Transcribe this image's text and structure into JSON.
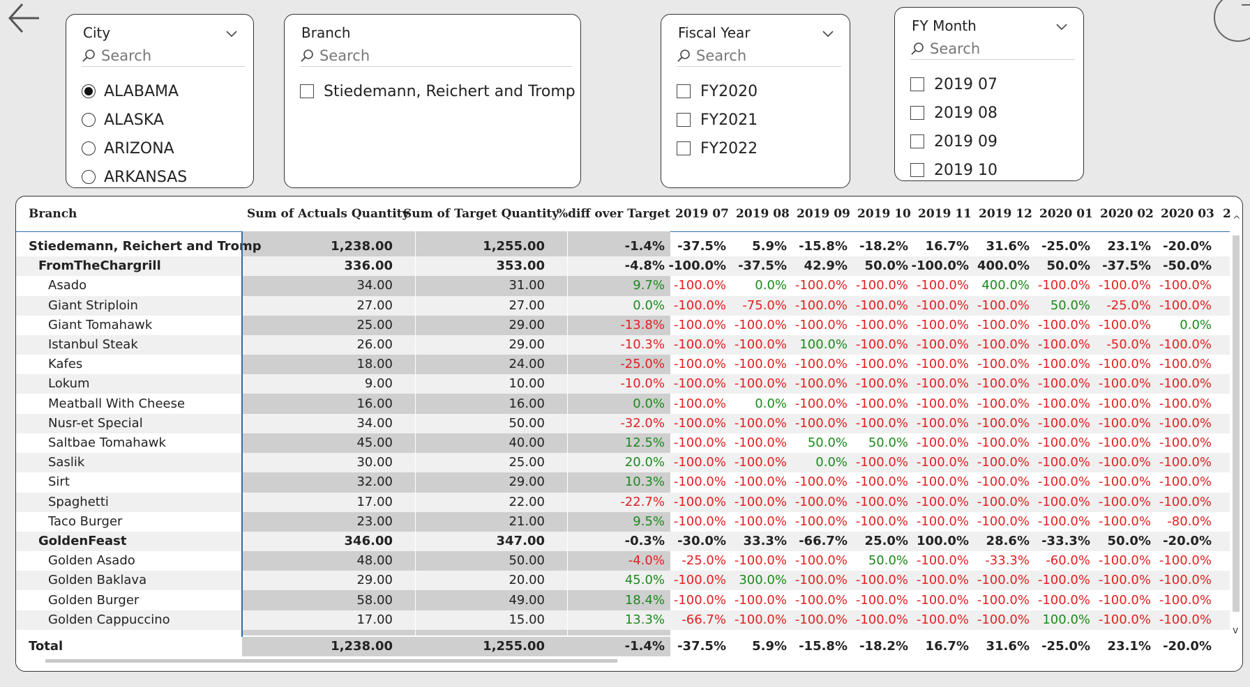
{
  "slicers": {
    "city": {
      "title": "City",
      "search": "Search",
      "items": [
        {
          "label": "ALABAMA",
          "selected": true
        },
        {
          "label": "ALASKA",
          "selected": false
        },
        {
          "label": "ARIZONA",
          "selected": false
        },
        {
          "label": "ARKANSAS",
          "selected": false
        }
      ]
    },
    "branch": {
      "title": "Branch",
      "search": "Search",
      "items": [
        {
          "label": "Stiedemann, Reichert and Tromp"
        }
      ]
    },
    "fiscal_year": {
      "title": "Fiscal Year",
      "search": "Search",
      "items": [
        {
          "label": "FY2020"
        },
        {
          "label": "FY2021"
        },
        {
          "label": "FY2022"
        }
      ]
    },
    "fy_month": {
      "title": "FY Month",
      "search": "Search",
      "items": [
        {
          "label": "2019 07"
        },
        {
          "label": "2019 08"
        },
        {
          "label": "2019 09"
        },
        {
          "label": "2019 10"
        }
      ]
    }
  },
  "matrix": {
    "headers": [
      "Branch",
      "Sum of Actuals Quantity",
      "Sum of Target Quantity",
      "%diff over Target",
      "2019 07",
      "2019 08",
      "2019 09",
      "2019 10",
      "2019 11",
      "2019 12",
      "2020 01",
      "2020 02",
      "2020 03",
      "2"
    ],
    "rows": [
      {
        "level": 0,
        "name": "Stiedemann, Reichert and Tromp",
        "actual": "1,238.00",
        "target": "1,255.00",
        "diff": "-1.4%",
        "months": [
          "-37.5%",
          "5.9%",
          "-15.8%",
          "-18.2%",
          "16.7%",
          "31.6%",
          "-25.0%",
          "23.1%",
          "-20.0%"
        ]
      },
      {
        "level": 1,
        "name": "FromTheChargrill",
        "actual": "336.00",
        "target": "353.00",
        "diff": "-4.8%",
        "months": [
          "-100.0%",
          "-37.5%",
          "42.9%",
          "50.0%",
          "-100.0%",
          "400.0%",
          "50.0%",
          "-37.5%",
          "-50.0%"
        ]
      },
      {
        "level": 2,
        "name": "Asado",
        "actual": "34.00",
        "target": "31.00",
        "diff": "9.7%",
        "months": [
          "-100.0%",
          "0.0%",
          "-100.0%",
          "-100.0%",
          "-100.0%",
          "400.0%",
          "-100.0%",
          "-100.0%",
          "-100.0%"
        ]
      },
      {
        "level": 2,
        "name": "Giant Striploin",
        "actual": "27.00",
        "target": "27.00",
        "diff": "0.0%",
        "months": [
          "-100.0%",
          "-75.0%",
          "-100.0%",
          "-100.0%",
          "-100.0%",
          "-100.0%",
          "50.0%",
          "-25.0%",
          "-100.0%"
        ]
      },
      {
        "level": 2,
        "name": "Giant Tomahawk",
        "actual": "25.00",
        "target": "29.00",
        "diff": "-13.8%",
        "months": [
          "-100.0%",
          "-100.0%",
          "-100.0%",
          "-100.0%",
          "-100.0%",
          "-100.0%",
          "-100.0%",
          "-100.0%",
          "0.0%"
        ]
      },
      {
        "level": 2,
        "name": "Istanbul Steak",
        "actual": "26.00",
        "target": "29.00",
        "diff": "-10.3%",
        "months": [
          "-100.0%",
          "-100.0%",
          "100.0%",
          "-100.0%",
          "-100.0%",
          "-100.0%",
          "-100.0%",
          "-50.0%",
          "-100.0%"
        ]
      },
      {
        "level": 2,
        "name": "Kafes",
        "actual": "18.00",
        "target": "24.00",
        "diff": "-25.0%",
        "months": [
          "-100.0%",
          "-100.0%",
          "-100.0%",
          "-100.0%",
          "-100.0%",
          "-100.0%",
          "-100.0%",
          "-100.0%",
          "-100.0%"
        ]
      },
      {
        "level": 2,
        "name": "Lokum",
        "actual": "9.00",
        "target": "10.00",
        "diff": "-10.0%",
        "months": [
          "-100.0%",
          "-100.0%",
          "-100.0%",
          "-100.0%",
          "-100.0%",
          "-100.0%",
          "-100.0%",
          "-100.0%",
          "-100.0%"
        ]
      },
      {
        "level": 2,
        "name": "Meatball With Cheese",
        "actual": "16.00",
        "target": "16.00",
        "diff": "0.0%",
        "months": [
          "-100.0%",
          "0.0%",
          "-100.0%",
          "-100.0%",
          "-100.0%",
          "-100.0%",
          "-100.0%",
          "-100.0%",
          "-100.0%"
        ]
      },
      {
        "level": 2,
        "name": "Nusr-et Special",
        "actual": "34.00",
        "target": "50.00",
        "diff": "-32.0%",
        "months": [
          "-100.0%",
          "-100.0%",
          "-100.0%",
          "-100.0%",
          "-100.0%",
          "-100.0%",
          "-100.0%",
          "-100.0%",
          "-100.0%"
        ]
      },
      {
        "level": 2,
        "name": "Saltbae Tomahawk",
        "actual": "45.00",
        "target": "40.00",
        "diff": "12.5%",
        "months": [
          "-100.0%",
          "-100.0%",
          "50.0%",
          "50.0%",
          "-100.0%",
          "-100.0%",
          "-100.0%",
          "-100.0%",
          "-100.0%"
        ]
      },
      {
        "level": 2,
        "name": "Saslik",
        "actual": "30.00",
        "target": "25.00",
        "diff": "20.0%",
        "months": [
          "-100.0%",
          "-100.0%",
          "0.0%",
          "-100.0%",
          "-100.0%",
          "-100.0%",
          "-100.0%",
          "-100.0%",
          "-100.0%"
        ]
      },
      {
        "level": 2,
        "name": "Sirt",
        "actual": "32.00",
        "target": "29.00",
        "diff": "10.3%",
        "months": [
          "-100.0%",
          "-100.0%",
          "-100.0%",
          "-100.0%",
          "-100.0%",
          "-100.0%",
          "-100.0%",
          "-100.0%",
          "-100.0%"
        ]
      },
      {
        "level": 2,
        "name": "Spaghetti",
        "actual": "17.00",
        "target": "22.00",
        "diff": "-22.7%",
        "months": [
          "-100.0%",
          "-100.0%",
          "-100.0%",
          "-100.0%",
          "-100.0%",
          "-100.0%",
          "-100.0%",
          "-100.0%",
          "-100.0%"
        ]
      },
      {
        "level": 2,
        "name": "Taco Burger",
        "actual": "23.00",
        "target": "21.00",
        "diff": "9.5%",
        "months": [
          "-100.0%",
          "-100.0%",
          "-100.0%",
          "-100.0%",
          "-100.0%",
          "-100.0%",
          "-100.0%",
          "-100.0%",
          "-80.0%"
        ]
      },
      {
        "level": 1,
        "name": "GoldenFeast",
        "actual": "346.00",
        "target": "347.00",
        "diff": "-0.3%",
        "months": [
          "-30.0%",
          "33.3%",
          "-66.7%",
          "25.0%",
          "100.0%",
          "28.6%",
          "-33.3%",
          "50.0%",
          "-20.0%"
        ]
      },
      {
        "level": 2,
        "name": "Golden Asado",
        "actual": "48.00",
        "target": "50.00",
        "diff": "-4.0%",
        "months": [
          "-25.0%",
          "-100.0%",
          "-100.0%",
          "50.0%",
          "-100.0%",
          "-33.3%",
          "-60.0%",
          "-100.0%",
          "-100.0%"
        ]
      },
      {
        "level": 2,
        "name": "Golden Baklava",
        "actual": "29.00",
        "target": "20.00",
        "diff": "45.0%",
        "months": [
          "-100.0%",
          "300.0%",
          "-100.0%",
          "-100.0%",
          "-100.0%",
          "-100.0%",
          "-100.0%",
          "-100.0%",
          "-100.0%"
        ]
      },
      {
        "level": 2,
        "name": "Golden Burger",
        "actual": "58.00",
        "target": "49.00",
        "diff": "18.4%",
        "months": [
          "-100.0%",
          "-100.0%",
          "-100.0%",
          "-100.0%",
          "-100.0%",
          "-100.0%",
          "-100.0%",
          "-100.0%",
          "-100.0%"
        ]
      },
      {
        "level": 2,
        "name": "Golden Cappuccino",
        "actual": "17.00",
        "target": "15.00",
        "diff": "13.3%",
        "months": [
          "-66.7%",
          "-100.0%",
          "-100.0%",
          "-100.0%",
          "-100.0%",
          "-100.0%",
          "100.0%",
          "-100.0%",
          "-100.0%"
        ]
      }
    ],
    "total": {
      "name": "Total",
      "actual": "1,238.00",
      "target": "1,255.00",
      "diff": "-1.4%",
      "months": [
        "-37.5%",
        "5.9%",
        "-15.8%",
        "-18.2%",
        "16.7%",
        "31.6%",
        "-25.0%",
        "23.1%",
        "-20.0%"
      ]
    },
    "colors": {
      "positive": "#1a8a1a",
      "negative": "#e02020"
    }
  }
}
